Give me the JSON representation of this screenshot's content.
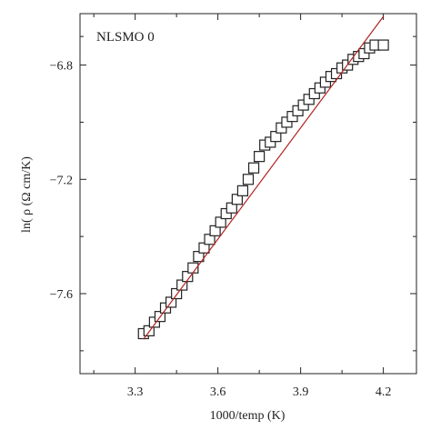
{
  "chart_data": {
    "type": "scatter",
    "annotation": "NLSMO 0",
    "xlabel": "1000/temp (K)",
    "ylabel": "ln( ρ (Ω cm/K)",
    "xlim": [
      3.1,
      4.32
    ],
    "ylim": [
      -7.88,
      -6.62
    ],
    "xticks": [
      3.3,
      3.6,
      3.9,
      4.2
    ],
    "xtick_labels": [
      "3.3",
      "3.6",
      "3.9",
      "4.2"
    ],
    "yticks": [
      -6.8,
      -7.2,
      -7.6
    ],
    "ytick_labels": [
      "−6.8",
      "−7.2",
      "−7.6"
    ],
    "grid": false,
    "series": [
      {
        "marker": "open-square",
        "color": "#222222",
        "x": [
          3.33,
          3.35,
          3.37,
          3.39,
          3.41,
          3.43,
          3.45,
          3.47,
          3.49,
          3.51,
          3.53,
          3.55,
          3.57,
          3.59,
          3.61,
          3.63,
          3.65,
          3.67,
          3.69,
          3.71,
          3.73,
          3.75,
          3.77,
          3.79,
          3.81,
          3.83,
          3.85,
          3.87,
          3.89,
          3.91,
          3.93,
          3.95,
          3.97,
          3.99,
          4.01,
          4.03,
          4.05,
          4.07,
          4.09,
          4.11,
          4.13,
          4.15,
          4.17,
          4.2
        ],
        "y": [
          -7.74,
          -7.73,
          -7.7,
          -7.68,
          -7.65,
          -7.63,
          -7.6,
          -7.57,
          -7.54,
          -7.51,
          -7.47,
          -7.44,
          -7.41,
          -7.38,
          -7.35,
          -7.32,
          -7.3,
          -7.27,
          -7.24,
          -7.2,
          -7.16,
          -7.12,
          -7.08,
          -7.07,
          -7.05,
          -7.02,
          -7.0,
          -6.98,
          -6.96,
          -6.94,
          -6.92,
          -6.9,
          -6.88,
          -6.86,
          -6.84,
          -6.83,
          -6.81,
          -6.8,
          -6.78,
          -6.77,
          -6.76,
          -6.74,
          -6.73,
          -6.73
        ]
      }
    ],
    "fit_line": {
      "color": "#b22222",
      "x": [
        3.33,
        4.2
      ],
      "y": [
        -7.76,
        -6.63
      ]
    }
  }
}
